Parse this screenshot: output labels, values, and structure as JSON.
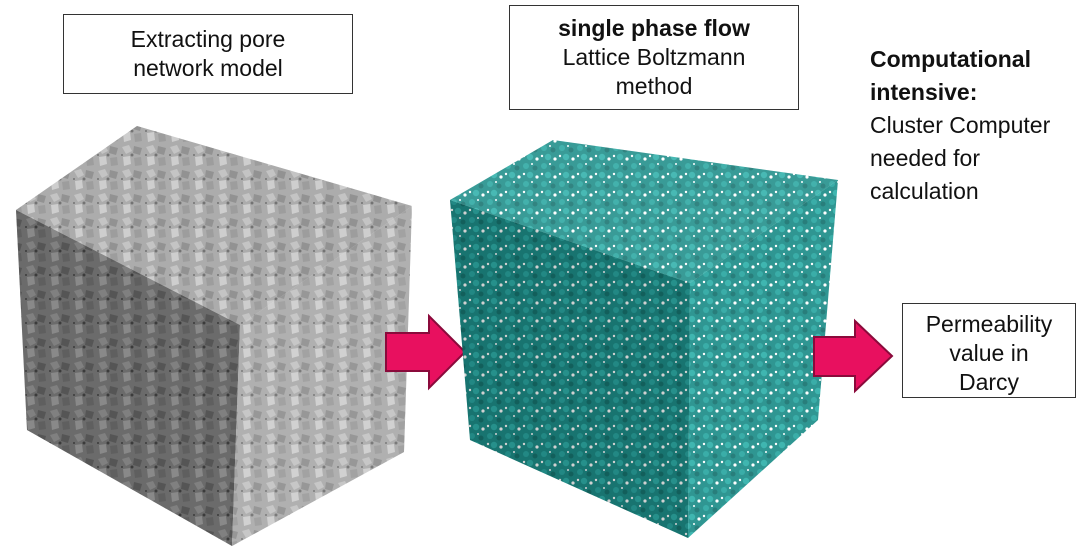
{
  "extract_box": {
    "line1": "Extracting pore",
    "line2": "network model"
  },
  "lbm_box": {
    "title": "single phase flow",
    "line1": "Lattice Boltzmann",
    "line2": "method"
  },
  "note": {
    "bold1": "Computational",
    "bold2": "intensive:",
    "line1": "Cluster Computer",
    "line2": "needed for",
    "line3": "calculation"
  },
  "result_box": {
    "line1": "Permeability",
    "line2": "value in",
    "line3": "Darcy"
  },
  "colors": {
    "arrow": "#e8105f",
    "rock": "#8c8c8c",
    "pore": "#1f8f8a"
  }
}
